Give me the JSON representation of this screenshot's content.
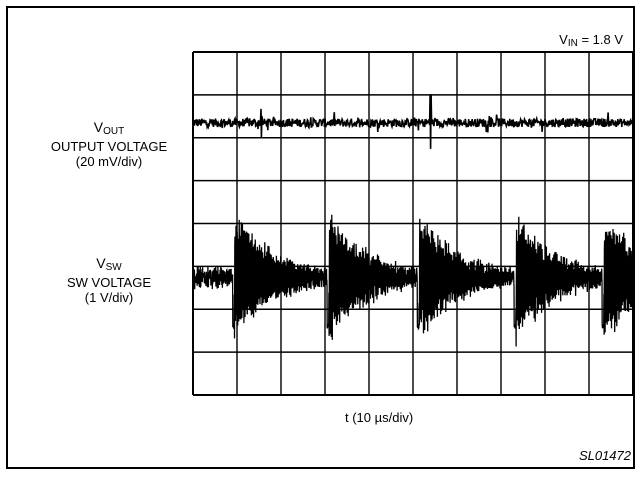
{
  "chart_data": {
    "type": "line",
    "title": "",
    "conditions": {
      "vin_prefix": "V",
      "vin_sub": "IN",
      "vin_value": " = 1.8 V"
    },
    "xlabel": "t (10 µs/div)",
    "grid": {
      "divisions_x": 10,
      "divisions_y": 8,
      "on": true
    },
    "series": [
      {
        "name": "VOUT",
        "symbol_main": "V",
        "symbol_sub": "OUT",
        "desc": "OUTPUT VOLTAGE",
        "scale": "(20 mV/div)",
        "center_div": 6.35,
        "noise_div": 0.1,
        "spikes_div": [
          {
            "t_div": 1.55,
            "amp_div": 0.4
          },
          {
            "t_div": 5.4,
            "amp_div": 0.65
          }
        ]
      },
      {
        "name": "VSW",
        "symbol_main": "V",
        "symbol_sub": "SW",
        "desc": "SW VOLTAGE",
        "scale": "(1 V/div)",
        "center_div": 2.75,
        "ringing_amp_div": 1.3,
        "ringing_decay_div": 0.9,
        "spike_down_div": 1.2,
        "switching_times_div": [
          0.9,
          3.05,
          5.1,
          7.3,
          9.3
        ]
      }
    ]
  },
  "figure_id": "SL01472"
}
